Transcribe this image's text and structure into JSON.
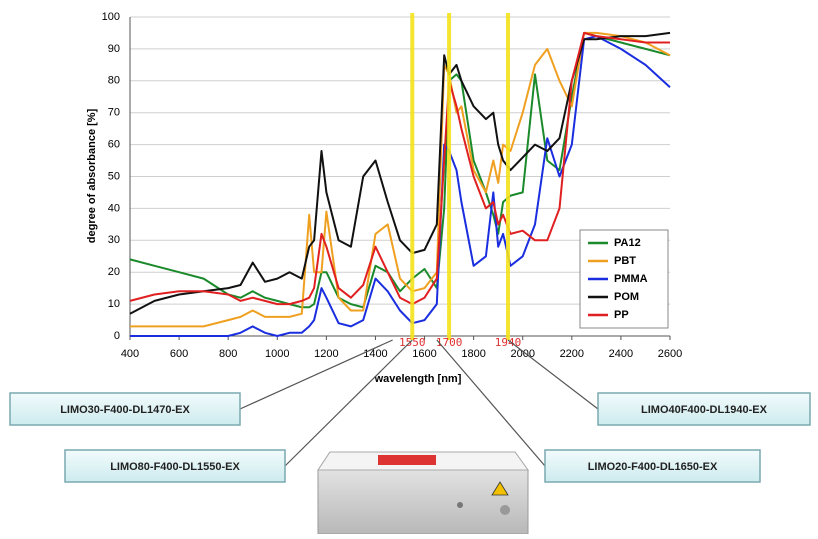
{
  "chart_data": {
    "type": "line",
    "xlabel": "wavelength [nm]",
    "ylabel": "degree of absorbance [%]",
    "x": [
      400,
      500,
      600,
      700,
      800,
      850,
      900,
      950,
      1000,
      1050,
      1100,
      1130,
      1150,
      1180,
      1200,
      1250,
      1300,
      1350,
      1400,
      1450,
      1500,
      1550,
      1600,
      1650,
      1680,
      1700,
      1730,
      1750,
      1800,
      1850,
      1880,
      1900,
      1920,
      1950,
      2000,
      2050,
      2100,
      2150,
      2200,
      2250,
      2300,
      2400,
      2500,
      2600
    ],
    "series": [
      {
        "name": "PA12",
        "color": "#1a8a2a",
        "values": [
          24,
          22,
          20,
          18,
          13,
          12,
          14,
          12,
          11,
          10,
          9,
          9,
          10,
          20,
          20,
          12,
          10,
          9,
          22,
          20,
          14,
          18,
          21,
          15,
          40,
          80,
          82,
          80,
          55,
          45,
          38,
          32,
          42,
          44,
          45,
          82,
          55,
          52,
          75,
          95,
          94,
          92,
          90,
          88
        ]
      },
      {
        "name": "PBT",
        "color": "#f0a020",
        "values": [
          3,
          3,
          3,
          3,
          5,
          6,
          8,
          6,
          6,
          6,
          7,
          38,
          20,
          20,
          39,
          12,
          8,
          8,
          32,
          35,
          18,
          14,
          15,
          20,
          85,
          82,
          70,
          72,
          52,
          45,
          55,
          48,
          60,
          58,
          70,
          85,
          90,
          80,
          72,
          95,
          95,
          94,
          92,
          88
        ]
      },
      {
        "name": "PMMA",
        "color": "#1a2ee0",
        "values": [
          0,
          0,
          0,
          0,
          0,
          1,
          3,
          1,
          0,
          1,
          1,
          3,
          5,
          15,
          12,
          4,
          3,
          5,
          18,
          14,
          8,
          4,
          5,
          10,
          60,
          58,
          52,
          42,
          22,
          25,
          45,
          28,
          32,
          22,
          25,
          35,
          62,
          50,
          60,
          93,
          94,
          90,
          85,
          78
        ]
      },
      {
        "name": "POM",
        "color": "#111111",
        "values": [
          7,
          11,
          13,
          14,
          15,
          16,
          23,
          17,
          18,
          20,
          18,
          28,
          30,
          58,
          45,
          30,
          28,
          50,
          55,
          42,
          30,
          26,
          27,
          35,
          88,
          82,
          85,
          80,
          72,
          68,
          70,
          60,
          55,
          52,
          56,
          60,
          58,
          62,
          80,
          93,
          93,
          94,
          94,
          95
        ]
      },
      {
        "name": "PP",
        "color": "#e02020",
        "values": [
          11,
          13,
          14,
          14,
          13,
          11,
          12,
          11,
          10,
          10,
          11,
          12,
          15,
          32,
          28,
          15,
          12,
          16,
          28,
          20,
          12,
          10,
          12,
          18,
          55,
          80,
          72,
          65,
          50,
          40,
          42,
          35,
          38,
          32,
          33,
          30,
          30,
          40,
          80,
          95,
          94,
          93,
          92,
          92
        ]
      }
    ],
    "xlim": [
      400,
      2600
    ],
    "xticks": [
      400,
      600,
      800,
      1000,
      1200,
      1400,
      1600,
      1800,
      2000,
      2200,
      2400,
      2600
    ],
    "ylim": [
      0,
      100
    ],
    "yticks": [
      0,
      10,
      20,
      30,
      40,
      50,
      60,
      70,
      80,
      90,
      100
    ],
    "grid": true,
    "legend": "right",
    "markers": [
      1550,
      1700,
      1940
    ],
    "marker_color": "#f5e21a",
    "annotations": [
      {
        "text": "LIMO30-F400-DL1470-EX",
        "x": 1470
      },
      {
        "text": "LIMO80-F400-DL1550-EX",
        "x": 1550
      },
      {
        "text": "LIMO20-F400-DL1650-EX",
        "x": 1650
      },
      {
        "text": "LIMO40F400-DL1940-EX",
        "x": 1940
      }
    ]
  }
}
